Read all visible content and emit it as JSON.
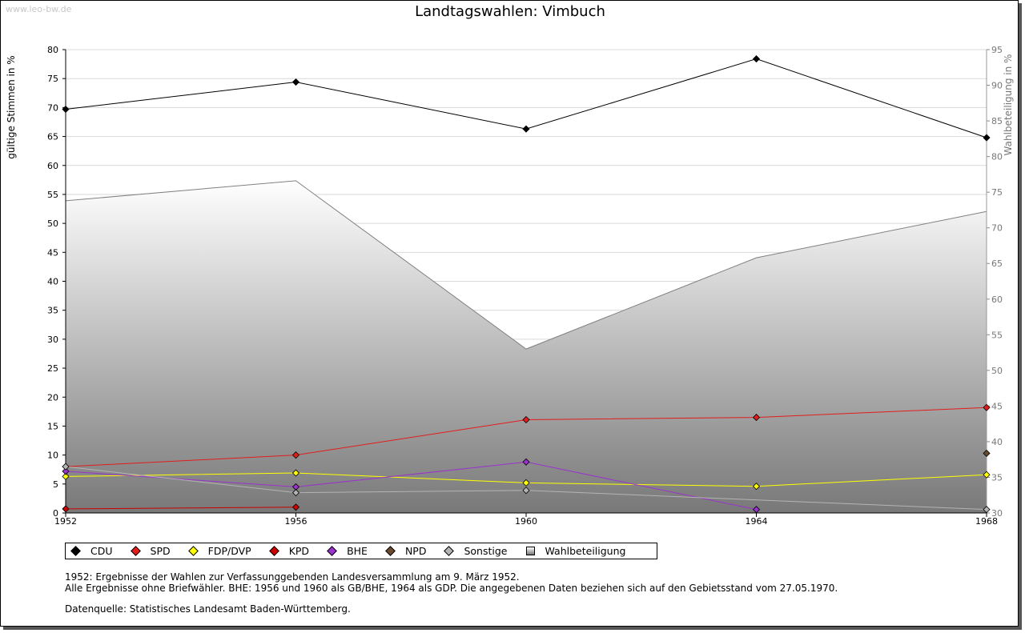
{
  "watermark": "www.leo-bw.de",
  "chart_data": {
    "type": "line",
    "title": "Landtagswahlen: Vimbuch",
    "x": [
      1952,
      1956,
      1960,
      1964,
      1968
    ],
    "x_tick_labels": [
      "1952",
      "1956",
      "1960",
      "1964",
      "1968"
    ],
    "ylabel_left": "gültige Stimmen in %",
    "ylabel_right": "Wahlbeteiligung in %",
    "ylim_left": [
      0,
      80
    ],
    "ylim_right": [
      30,
      95
    ],
    "y_ticks_left": [
      0,
      5,
      10,
      15,
      20,
      25,
      30,
      35,
      40,
      45,
      50,
      55,
      60,
      65,
      70,
      75,
      80
    ],
    "y_ticks_right": [
      30,
      35,
      40,
      45,
      50,
      55,
      60,
      65,
      70,
      75,
      80,
      85,
      90,
      95
    ],
    "grid": true,
    "legend_position": "bottom",
    "series": [
      {
        "name": "CDU",
        "color": "#000000",
        "axis": "left",
        "values": [
          69.7,
          74.4,
          66.3,
          78.4,
          64.8
        ]
      },
      {
        "name": "SPD",
        "color": "#e31c1c",
        "axis": "left",
        "values": [
          8.0,
          10.0,
          16.1,
          16.5,
          18.2
        ]
      },
      {
        "name": "FDP/DVP",
        "color": "#ffff00",
        "axis": "left",
        "values": [
          6.3,
          6.9,
          5.2,
          4.6,
          6.6
        ]
      },
      {
        "name": "KPD",
        "color": "#cc0000",
        "axis": "left",
        "values": [
          0.7,
          1.0,
          null,
          null,
          null
        ]
      },
      {
        "name": "BHE",
        "color": "#9933cc",
        "axis": "left",
        "values": [
          7.2,
          4.5,
          8.8,
          0.6,
          null
        ]
      },
      {
        "name": "NPD",
        "color": "#6b4a2e",
        "axis": "left",
        "values": [
          null,
          null,
          null,
          null,
          10.3
        ]
      },
      {
        "name": "Sonstige",
        "color": "#b4b4b4",
        "axis": "left",
        "values": [
          8.0,
          3.5,
          3.9,
          null,
          0.6
        ]
      },
      {
        "name": "Wahlbeteiligung",
        "color": "#808080",
        "axis": "right",
        "type": "area",
        "values": [
          73.8,
          76.6,
          53.0,
          65.8,
          72.3
        ]
      }
    ]
  },
  "notes": {
    "line1": "1952: Ergebnisse der Wahlen zur Verfassunggebenden Landesversammlung am 9. März 1952.",
    "line2": "Alle Ergebnisse ohne Briefwähler. BHE: 1956 und 1960 als GB/BHE, 1964 als GDP. Die angegebenen Daten beziehen sich auf den Gebietsstand vom 27.05.1970.",
    "source": "Datenquelle: Statistisches Landesamt Baden-Württemberg."
  }
}
